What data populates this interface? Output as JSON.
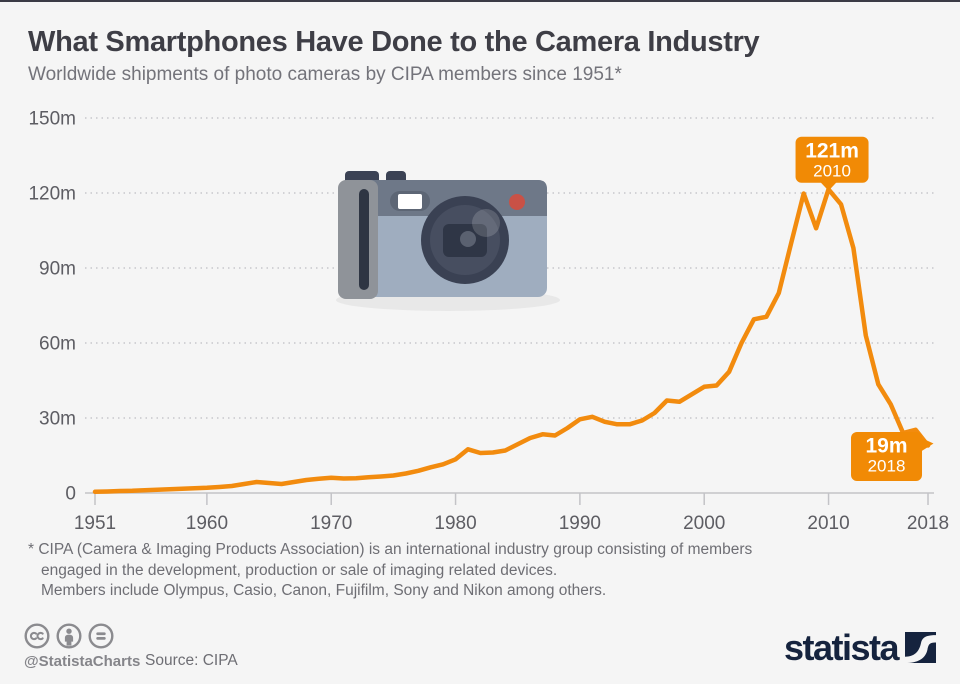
{
  "header": {
    "title": "What Smartphones Have Done to the Camera Industry",
    "subtitle": "Worldwide shipments of photo cameras by CIPA members since 1951*"
  },
  "chart_data": {
    "type": "line",
    "title": "Worldwide shipments of photo cameras by CIPA members since 1951",
    "unit": "million units",
    "line_color": "#F28B0E",
    "annotation_color": "#F18A05",
    "grid": "horizontal-dotted",
    "ylim": [
      0,
      150
    ],
    "x": [
      1951,
      1952,
      1953,
      1954,
      1955,
      1956,
      1957,
      1958,
      1959,
      1960,
      1961,
      1962,
      1963,
      1964,
      1965,
      1966,
      1967,
      1968,
      1969,
      1970,
      1971,
      1972,
      1973,
      1974,
      1975,
      1976,
      1977,
      1978,
      1979,
      1980,
      1981,
      1982,
      1983,
      1984,
      1985,
      1986,
      1987,
      1988,
      1989,
      1990,
      1991,
      1992,
      1993,
      1994,
      1995,
      1996,
      1997,
      1998,
      1999,
      2000,
      2001,
      2002,
      2003,
      2004,
      2005,
      2006,
      2007,
      2008,
      2009,
      2010,
      2011,
      2012,
      2013,
      2014,
      2015,
      2016,
      2017,
      2018
    ],
    "values": [
      0.5,
      0.6,
      0.8,
      0.9,
      1.1,
      1.3,
      1.5,
      1.7,
      1.9,
      2.1,
      2.4,
      2.8,
      3.6,
      4.4,
      4.0,
      3.6,
      4.4,
      5.2,
      5.7,
      6.1,
      5.8,
      5.9,
      6.3,
      6.6,
      7.0,
      7.8,
      8.9,
      10.3,
      11.5,
      13.5,
      17.5,
      16.0,
      16.2,
      17.0,
      19.5,
      22.0,
      23.5,
      23.0,
      26.0,
      29.5,
      30.5,
      28.5,
      27.5,
      27.5,
      29.0,
      32.0,
      37.0,
      36.5,
      39.5,
      42.5,
      43.0,
      48.5,
      60.0,
      69.5,
      70.5,
      80.0,
      100.0,
      119.8,
      105.9,
      121.5,
      115.5,
      98.0,
      63.0,
      43.5,
      35.5,
      24.0,
      25.3,
      19.0
    ],
    "y_axis_ticks": [
      {
        "label": "150m",
        "value": 150
      },
      {
        "label": "120m",
        "value": 120
      },
      {
        "label": "90m",
        "value": 90
      },
      {
        "label": "60m",
        "value": 60
      },
      {
        "label": "30m",
        "value": 30
      },
      {
        "label": "0",
        "value": 0
      }
    ],
    "x_axis_ticks": [
      {
        "label": "1951",
        "year": 1951
      },
      {
        "label": "1960",
        "year": 1960
      },
      {
        "label": "1970",
        "year": 1970
      },
      {
        "label": "1980",
        "year": 1980
      },
      {
        "label": "1990",
        "year": 1990
      },
      {
        "label": "2000",
        "year": 2000
      },
      {
        "label": "2010",
        "year": 2010
      },
      {
        "label": "2018",
        "year": 2018
      }
    ],
    "annotations": [
      {
        "value_label": "121m",
        "year_label": "2010",
        "year": 2010,
        "value": 121.5,
        "pointer": "down"
      },
      {
        "value_label": "19m",
        "year_label": "2018",
        "year": 2018,
        "value": 19.0,
        "pointer": "right"
      }
    ]
  },
  "footnote": {
    "lines": [
      "* CIPA (Camera & Imaging Products Association) is an international industry group consisting of members",
      "engaged in the development, production or sale of imaging related devices.",
      "Members include Olympus, Casio, Canon, Fujifilm, Sony and Nikon among others."
    ]
  },
  "footer": {
    "handle": "@StatistaCharts",
    "source": "Source: CIPA",
    "brand": "statista"
  }
}
